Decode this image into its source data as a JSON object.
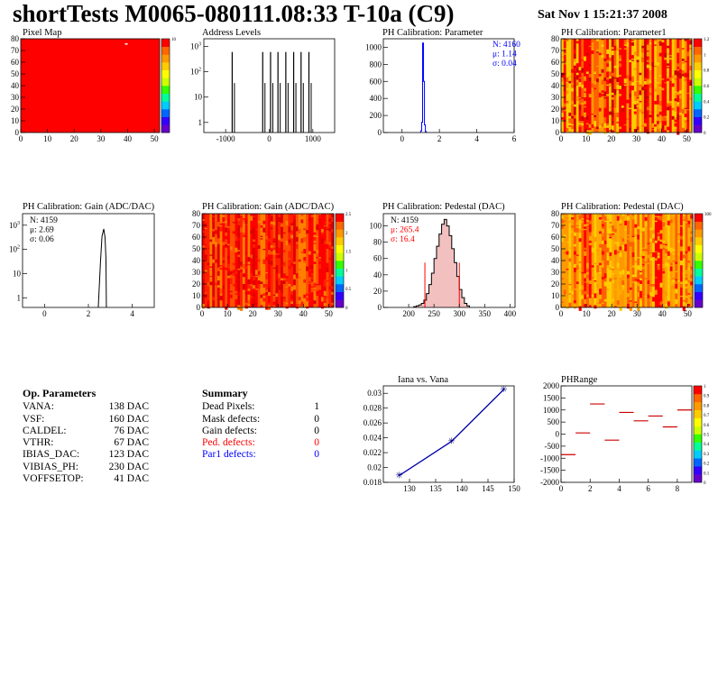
{
  "header": {
    "title": "shortTests M0065-080111.08:33 T-10a (C9)",
    "datetime": "Sat Nov  1 15:21:37 2008"
  },
  "colors": {
    "map_red": "#ff0000",
    "stat_blue": "#0000ff",
    "stat_red": "#ff0000",
    "hist_line": "#000000"
  },
  "chart_data": [
    {
      "type": "heatmap",
      "title": "Pixel Map",
      "xlim": [
        0,
        52
      ],
      "ylim": [
        0,
        80
      ],
      "xticks": [
        "0",
        "10",
        "20",
        "30",
        "40",
        "50"
      ],
      "yticks": [
        "0",
        "10",
        "20",
        "30",
        "40",
        "50",
        "60",
        "70",
        "80"
      ],
      "palette_ticks": [
        "10"
      ],
      "fill": "uniform red (all pixels alive)",
      "colors": [
        "#ff0000"
      ]
    },
    {
      "type": "bar",
      "title": "Address Levels",
      "scale": "log",
      "xlim": [
        -1500,
        1500
      ],
      "xticks": [
        "-1000",
        "0",
        "1000"
      ],
      "yticks": [
        "1",
        "10",
        "10^2",
        "10^3"
      ],
      "x": [
        -850,
        -150,
        30,
        200,
        380,
        560,
        730,
        910
      ],
      "values": [
        600,
        600,
        600,
        600,
        600,
        600,
        600,
        600
      ]
    },
    {
      "type": "bar",
      "title": "PH Calibration: Parameter",
      "xlim": [
        -1,
        6
      ],
      "ylim": [
        0,
        1100
      ],
      "xticks": [
        "0",
        "2",
        "4",
        "6"
      ],
      "yticks": [
        "0",
        "200",
        "400",
        "600",
        "800",
        "1000"
      ],
      "stats": {
        "n": "N: 4160",
        "mean": "μ: 1.14",
        "sigma": "σ: 0.04"
      },
      "x": [
        1.0,
        1.05,
        1.1,
        1.15,
        1.2,
        1.25
      ],
      "values": [
        20,
        120,
        1050,
        600,
        90,
        10
      ]
    },
    {
      "type": "heatmap",
      "title": "PH Calibration: Parameter1",
      "xlim": [
        0,
        52
      ],
      "ylim": [
        0,
        80
      ],
      "xticks": [
        "0",
        "10",
        "20",
        "30",
        "40",
        "50"
      ],
      "yticks": [
        "0",
        "10",
        "20",
        "30",
        "40",
        "50",
        "60",
        "70",
        "80"
      ],
      "palette_ticks": [
        "0",
        "0.2",
        "0.4",
        "0.6",
        "0.8",
        "1",
        "1.2"
      ],
      "colors": [
        "#ff0000",
        "#ff6000",
        "#ff9900",
        "#ffcc00",
        "#cc0000"
      ]
    },
    {
      "type": "bar",
      "title": "PH Calibration: Gain (ADC/DAC)",
      "scale": "log",
      "xlim": [
        -1,
        5
      ],
      "xticks": [
        "0",
        "2",
        "4"
      ],
      "yticks": [
        "1",
        "10",
        "10^2",
        "10^3"
      ],
      "stats": {
        "n": "N: 4159",
        "mean": "μ: 2.69",
        "sigma": "σ: 0.06"
      },
      "x": [
        2.45,
        2.55,
        2.65,
        2.75,
        2.85
      ],
      "values": [
        1,
        30,
        700,
        300,
        1
      ]
    },
    {
      "type": "heatmap",
      "title": "PH Calibration: Gain (ADC/DAC)",
      "xlim": [
        0,
        52
      ],
      "ylim": [
        0,
        80
      ],
      "xticks": [
        "0",
        "10",
        "20",
        "30",
        "40",
        "50"
      ],
      "yticks": [
        "0",
        "10",
        "20",
        "30",
        "40",
        "50",
        "60",
        "70",
        "80"
      ],
      "palette_ticks": [
        "0",
        "0.5",
        "1",
        "1.5",
        "2",
        "2.5"
      ],
      "colors": [
        "#ff0000",
        "#ff2000",
        "#ff5000",
        "#ff8000",
        "#e00000"
      ]
    },
    {
      "type": "bar",
      "title": "PH Calibration: Pedestal (DAC)",
      "xlim": [
        150,
        410
      ],
      "ylim": [
        0,
        115
      ],
      "xticks": [
        "200",
        "250",
        "300",
        "350",
        "400"
      ],
      "yticks": [
        "0",
        "20",
        "40",
        "60",
        "80",
        "100"
      ],
      "stats": {
        "n": "N: 4159",
        "mean": "μ: 265.4",
        "sigma": "σ: 16.4"
      },
      "cut_lines": [
        232,
        300
      ],
      "x": [
        210,
        215,
        220,
        225,
        230,
        235,
        240,
        245,
        250,
        255,
        260,
        265,
        270,
        275,
        280,
        285,
        290,
        295,
        300,
        305,
        310,
        315
      ],
      "values": [
        1,
        2,
        3,
        5,
        9,
        17,
        28,
        42,
        60,
        75,
        90,
        102,
        108,
        100,
        88,
        72,
        55,
        38,
        22,
        12,
        5,
        2
      ]
    },
    {
      "type": "heatmap",
      "title": "PH Calibration: Pedestal (DAC)",
      "xlim": [
        0,
        52
      ],
      "ylim": [
        0,
        80
      ],
      "xticks": [
        "0",
        "10",
        "20",
        "30",
        "40",
        "50"
      ],
      "yticks": [
        "0",
        "10",
        "20",
        "30",
        "40",
        "50",
        "60",
        "70",
        "80"
      ],
      "palette_ticks": [
        "300"
      ],
      "colors": [
        "#ff0000",
        "#ff6000",
        "#ff9900",
        "#ffcc00",
        "#ffaa00"
      ]
    },
    {
      "type": "line",
      "title": "Iana vs. Vana",
      "xlim": [
        125,
        150
      ],
      "ylim": [
        0.018,
        0.031
      ],
      "xticks": [
        "130",
        "135",
        "140",
        "145",
        "150"
      ],
      "yticks": [
        "0.018",
        "0.02",
        "0.022",
        "0.024",
        "0.026",
        "0.028",
        "0.03"
      ],
      "series": [
        {
          "x": [
            128,
            138,
            148
          ],
          "values": [
            0.0189,
            0.0235,
            0.0305
          ]
        }
      ]
    },
    {
      "type": "scatter",
      "title": "PHRange",
      "xlim": [
        0,
        9
      ],
      "ylim": [
        -2000,
        2000
      ],
      "xticks": [
        "0",
        "2",
        "4",
        "6",
        "8"
      ],
      "yticks": [
        "-2000",
        "-1500",
        "-1000",
        "-500",
        "0",
        "500",
        "1000",
        "1500",
        "2000"
      ],
      "palette_ticks": [
        "0",
        "0.1",
        "0.2",
        "0.3",
        "0.4",
        "0.5",
        "0.6",
        "0.7",
        "0.8",
        "0.9",
        "1"
      ],
      "x": [
        0.5,
        1.5,
        2.5,
        3.5,
        4.5,
        5.5,
        6.5,
        7.5,
        8.5
      ],
      "values": [
        -850,
        50,
        1250,
        -250,
        900,
        550,
        750,
        300,
        1000
      ]
    }
  ],
  "op_params": {
    "title": "Op. Parameters",
    "rows": [
      {
        "name": "VANA:",
        "value": "138 DAC"
      },
      {
        "name": "VSF:",
        "value": "160 DAC"
      },
      {
        "name": "CALDEL:",
        "value": "76 DAC"
      },
      {
        "name": "VTHR:",
        "value": "67 DAC"
      },
      {
        "name": "IBIAS_DAC:",
        "value": "123 DAC"
      },
      {
        "name": "VIBIAS_PH:",
        "value": "230 DAC"
      },
      {
        "name": "VOFFSETOP:",
        "value": "41 DAC"
      }
    ]
  },
  "summary": {
    "title": "Summary",
    "rows": [
      {
        "name": "Dead Pixels:",
        "value": "1",
        "color": "#000000"
      },
      {
        "name": "Mask defects:",
        "value": "0",
        "color": "#000000"
      },
      {
        "name": "Gain defects:",
        "value": "0",
        "color": "#000000"
      },
      {
        "name": "Ped. defects:",
        "value": "0",
        "color": "#ff0000"
      },
      {
        "name": "Par1 defects:",
        "value": "0",
        "color": "#0000ff"
      }
    ]
  }
}
